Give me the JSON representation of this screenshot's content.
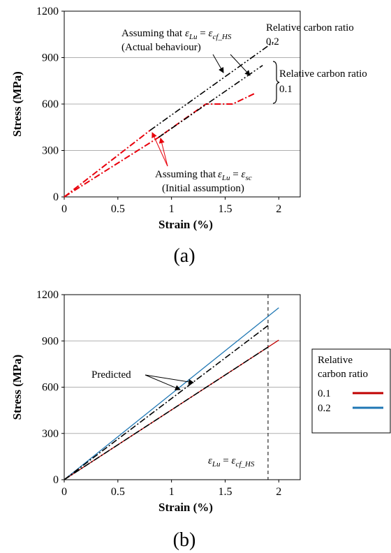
{
  "chart_data": [
    {
      "panel_label": "(a)",
      "type": "line",
      "xlabel": "Strain (%)",
      "ylabel": "Stress (MPa)",
      "xlim": [
        0,
        2.2
      ],
      "ylim": [
        0,
        1200
      ],
      "xticks": [
        "0",
        "0.5",
        "1",
        "1.5",
        "2"
      ],
      "yticks": [
        "0",
        "300",
        "600",
        "900",
        "1200"
      ],
      "grid": "horizontal",
      "colors": {
        "initial": "#e8000b",
        "actual": "#000000"
      },
      "series": [
        {
          "ratio": "0.2",
          "behaviour": "initial",
          "x": [
            0,
            0.8
          ],
          "y": [
            0,
            430
          ]
        },
        {
          "ratio": "0.2",
          "behaviour": "actual",
          "x": [
            0.8,
            1.95
          ],
          "y": [
            430,
            1000
          ]
        },
        {
          "ratio": "0.1",
          "behaviour": "initial",
          "x": [
            0,
            0.88,
            1.32,
            1.57,
            1.78
          ],
          "y": [
            0,
            385,
            600,
            600,
            670
          ]
        },
        {
          "ratio": "0.1",
          "behaviour": "actual",
          "x": [
            0.88,
            1.85
          ],
          "y": [
            385,
            850
          ]
        }
      ],
      "annotations": {
        "actual_assumption": "Assuming that ",
        "actual_eq_lhs": "ε",
        "actual_eq_lhs_sub": "Lu",
        "actual_eq_rhs": "ε",
        "actual_eq_rhs_sub": "cf_HS",
        "actual_note": "(Actual behaviour)",
        "initial_assumption": "Assuming that ",
        "initial_eq_lhs": "ε",
        "initial_eq_lhs_sub": "Lu",
        "initial_eq_rhs": "ε",
        "initial_eq_rhs_sub": "sc",
        "initial_note": "(Initial assumption)",
        "equals": " = ",
        "ratio_label": "Relative carbon ratio",
        "ratio_02": "0.2",
        "ratio_01": "0.1"
      }
    },
    {
      "panel_label": "(b)",
      "type": "line",
      "xlabel": "Strain (%)",
      "ylabel": "Stress (MPa)",
      "xlim": [
        0,
        2.2
      ],
      "ylim": [
        0,
        1200
      ],
      "xticks": [
        "0",
        "0.5",
        "1",
        "1.5",
        "2"
      ],
      "yticks": [
        "0",
        "300",
        "600",
        "900",
        "1200"
      ],
      "grid": "horizontal",
      "vline_x": 1.9,
      "vline_label_lhs": "ε",
      "vline_label_lhs_sub": "Lu",
      "vline_label_rhs": "ε",
      "vline_label_rhs_sub": "cf_HS",
      "equals": " = ",
      "predicted_label": "Predicted",
      "legend": {
        "title_line1": "Relative",
        "title_line2": "carbon ratio",
        "placement": "right",
        "entries": [
          {
            "name": "0.1",
            "color": "#c00000"
          },
          {
            "name": "0.2",
            "color": "#1f77b4"
          }
        ]
      },
      "series": [
        {
          "name": "0.1",
          "style": "solid",
          "color": "#c00000",
          "x": [
            0,
            2.0
          ],
          "y": [
            0,
            905
          ]
        },
        {
          "name": "0.2",
          "style": "solid",
          "color": "#1f77b4",
          "x": [
            0,
            2.0
          ],
          "y": [
            0,
            1115
          ]
        },
        {
          "name": "0.1 predicted",
          "style": "dashdot",
          "color": "#000000",
          "x": [
            0,
            1.9
          ],
          "y": [
            0,
            860
          ]
        },
        {
          "name": "0.2 predicted",
          "style": "dashdot",
          "color": "#000000",
          "x": [
            0,
            1.9
          ],
          "y": [
            0,
            1000
          ]
        }
      ]
    }
  ]
}
